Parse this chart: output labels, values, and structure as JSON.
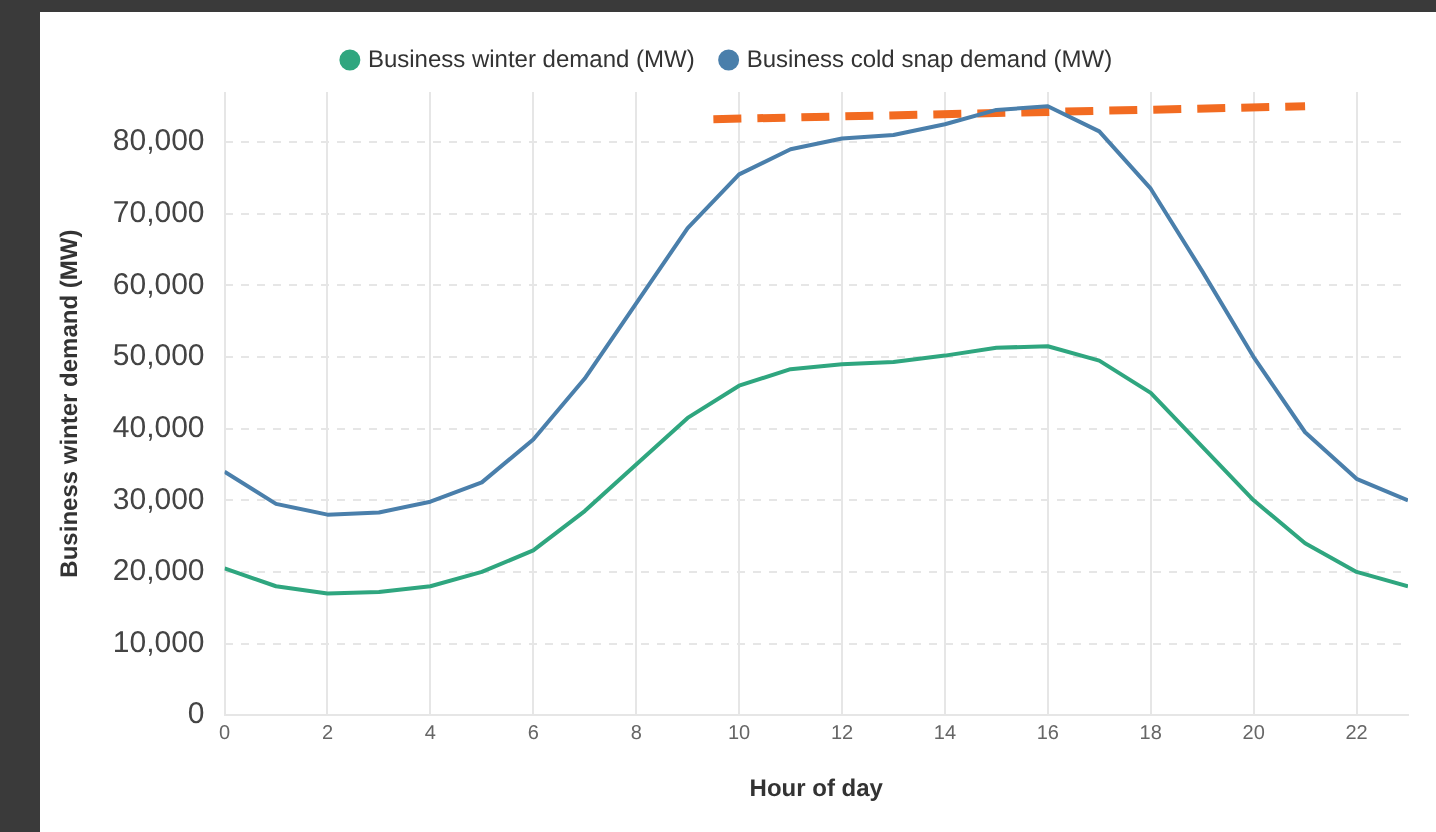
{
  "chart_data": {
    "type": "line",
    "xlabel": "Hour of day",
    "ylabel": "Business winter demand (MW)",
    "xlim": [
      0,
      23
    ],
    "xticks": [
      0,
      2,
      4,
      6,
      8,
      10,
      12,
      14,
      16,
      18,
      20,
      22
    ],
    "ylim": [
      0,
      87000
    ],
    "yticks": [
      0,
      {
        "value": 10000,
        "label": "10,000"
      },
      {
        "value": 20000,
        "label": "20,000"
      },
      {
        "value": 30000,
        "label": "30,000"
      },
      {
        "value": 40000,
        "label": "40,000"
      },
      {
        "value": 50000,
        "label": "50,000"
      },
      {
        "value": 60000,
        "label": "60,000"
      },
      {
        "value": 70000,
        "label": "70,000"
      },
      {
        "value": 80000,
        "label": "80,000"
      }
    ],
    "grid": true,
    "legend": "top",
    "marker": "none",
    "x": [
      0,
      1,
      2,
      3,
      4,
      5,
      6,
      7,
      8,
      9,
      10,
      11,
      12,
      13,
      14,
      15,
      16,
      17,
      18,
      19,
      20,
      21,
      22,
      23
    ],
    "series": [
      {
        "name": "Business winter demand (MW)",
        "color": "#2fa67f",
        "values": [
          20500,
          18000,
          17000,
          17200,
          18000,
          20000,
          23000,
          28500,
          35000,
          41500,
          46000,
          48300,
          49000,
          49300,
          50200,
          51300,
          51500,
          49500,
          45000,
          37500,
          30000,
          24000,
          20000,
          18000
        ]
      },
      {
        "name": "Business cold snap demand (MW)",
        "color": "#4a7fab",
        "values": [
          34000,
          29500,
          28000,
          28300,
          29800,
          32500,
          38500,
          47000,
          57500,
          68000,
          75500,
          79000,
          80500,
          81000,
          82500,
          84500,
          85000,
          81500,
          73500,
          62000,
          50000,
          39500,
          33000,
          30000
        ]
      },
      {
        "type": "line",
        "color": "#f26b21",
        "line_style": "dashed",
        "x": [
          9.5,
          21
        ],
        "values": [
          83200,
          85000
        ]
      }
    ]
  }
}
